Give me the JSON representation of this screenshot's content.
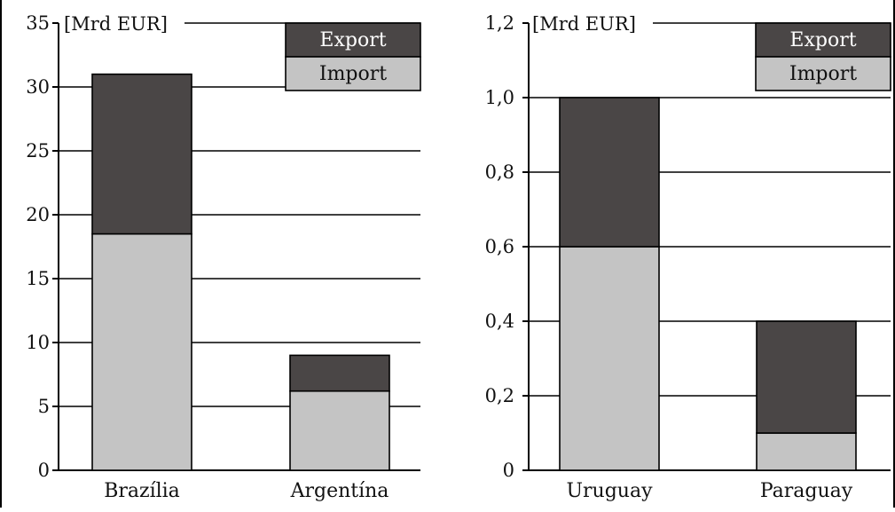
{
  "chart_data": [
    {
      "type": "bar",
      "stacked": true,
      "unit_label": "[Mrd EUR]",
      "categories": [
        "Brazília",
        "Argentína"
      ],
      "series": [
        {
          "name": "Import",
          "values": [
            18.5,
            6.2
          ]
        },
        {
          "name": "Export",
          "values": [
            12.5,
            2.8
          ]
        }
      ],
      "ylim": [
        0,
        35
      ],
      "yticks": [
        0,
        5,
        10,
        15,
        20,
        25,
        30,
        35
      ],
      "ytick_labels": [
        "0",
        "5",
        "10",
        "15",
        "20",
        "25",
        "30",
        "35"
      ],
      "grid": true,
      "legend": "top-right"
    },
    {
      "type": "bar",
      "stacked": true,
      "unit_label": "[Mrd EUR]",
      "categories": [
        "Uruguay",
        "Paraguay"
      ],
      "series": [
        {
          "name": "Import",
          "values": [
            0.6,
            0.1
          ]
        },
        {
          "name": "Export",
          "values": [
            0.4,
            0.3
          ]
        }
      ],
      "ylim": [
        0,
        1.2
      ],
      "yticks": [
        0,
        0.2,
        0.4,
        0.6,
        0.8,
        1.0,
        1.2
      ],
      "ytick_labels": [
        "0",
        "0,2",
        "0,4",
        "0,6",
        "0,8",
        "1,0",
        "1,2"
      ],
      "grid": true,
      "legend": "top-right"
    }
  ],
  "colors": {
    "export": "#4a4646",
    "import": "#c4c4c4",
    "export_text": "#ffffff",
    "import_text": "#111111"
  }
}
